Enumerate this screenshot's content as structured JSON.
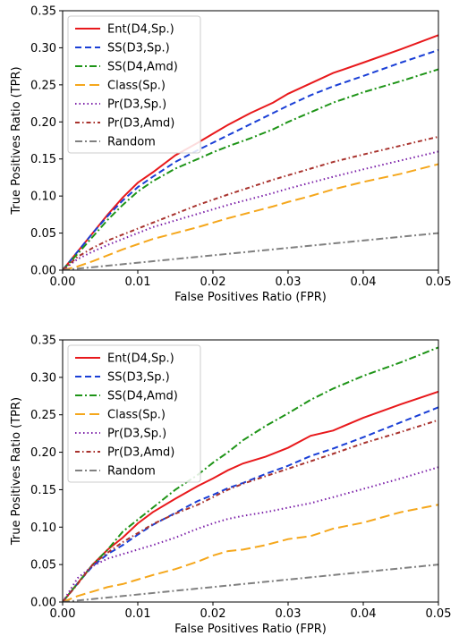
{
  "chart_data": [
    {
      "type": "line",
      "xlabel": "False Positives Ratio (FPR)",
      "ylabel": "True Positives Ratio (TPR)",
      "xlim": [
        0,
        0.05
      ],
      "ylim": [
        0,
        0.35
      ],
      "xticks": [
        "0.00",
        "0.01",
        "0.02",
        "0.03",
        "0.04",
        "0.05"
      ],
      "yticks": [
        "0.00",
        "0.05",
        "0.10",
        "0.15",
        "0.20",
        "0.25",
        "0.30",
        "0.35"
      ],
      "grid": false,
      "legend_position": "upper-left",
      "series": [
        {
          "name": "Ent(D4,Sp.)",
          "color": "#e8191c",
          "dash": "solid",
          "x": [
            0,
            0.002,
            0.004,
            0.006,
            0.008,
            0.01,
            0.012,
            0.015,
            0.018,
            0.02,
            0.022,
            0.025,
            0.028,
            0.03,
            0.033,
            0.036,
            0.04,
            0.045,
            0.05
          ],
          "y": [
            0,
            0.025,
            0.05,
            0.075,
            0.098,
            0.118,
            0.132,
            0.155,
            0.172,
            0.184,
            0.196,
            0.212,
            0.226,
            0.238,
            0.252,
            0.266,
            0.28,
            0.298,
            0.317
          ]
        },
        {
          "name": "SS(D3,Sp.)",
          "color": "#1a3fd6",
          "dash": "dashed",
          "x": [
            0,
            0.002,
            0.004,
            0.006,
            0.008,
            0.01,
            0.012,
            0.015,
            0.018,
            0.02,
            0.022,
            0.025,
            0.028,
            0.03,
            0.033,
            0.036,
            0.04,
            0.045,
            0.05
          ],
          "y": [
            0,
            0.025,
            0.05,
            0.073,
            0.094,
            0.112,
            0.126,
            0.146,
            0.162,
            0.172,
            0.182,
            0.197,
            0.212,
            0.222,
            0.236,
            0.248,
            0.262,
            0.28,
            0.297
          ]
        },
        {
          "name": "SS(D4,Amd)",
          "color": "#1e9417",
          "dash": "dashdot",
          "x": [
            0,
            0.002,
            0.004,
            0.006,
            0.008,
            0.01,
            0.012,
            0.015,
            0.018,
            0.02,
            0.022,
            0.025,
            0.028,
            0.03,
            0.033,
            0.036,
            0.04,
            0.045,
            0.05
          ],
          "y": [
            0,
            0.022,
            0.045,
            0.068,
            0.088,
            0.106,
            0.12,
            0.137,
            0.15,
            0.159,
            0.167,
            0.178,
            0.19,
            0.2,
            0.213,
            0.226,
            0.24,
            0.255,
            0.271
          ]
        },
        {
          "name": "Class(Sp.)",
          "color": "#f5a71c",
          "dash": "longdash",
          "x": [
            0,
            0.002,
            0.004,
            0.006,
            0.008,
            0.01,
            0.012,
            0.015,
            0.018,
            0.02,
            0.022,
            0.025,
            0.028,
            0.03,
            0.033,
            0.036,
            0.04,
            0.045,
            0.05
          ],
          "y": [
            0,
            0.005,
            0.012,
            0.02,
            0.028,
            0.035,
            0.042,
            0.05,
            0.058,
            0.064,
            0.07,
            0.078,
            0.086,
            0.092,
            0.1,
            0.109,
            0.119,
            0.13,
            0.143
          ]
        },
        {
          "name": "Pr(D3,Sp.)",
          "color": "#7b1fa8",
          "dash": "dotted",
          "x": [
            0,
            0.002,
            0.004,
            0.006,
            0.008,
            0.01,
            0.012,
            0.015,
            0.018,
            0.02,
            0.022,
            0.025,
            0.028,
            0.03,
            0.033,
            0.036,
            0.04,
            0.045,
            0.05
          ],
          "y": [
            0,
            0.015,
            0.025,
            0.034,
            0.042,
            0.05,
            0.058,
            0.067,
            0.076,
            0.082,
            0.088,
            0.096,
            0.104,
            0.11,
            0.118,
            0.126,
            0.136,
            0.148,
            0.16
          ]
        },
        {
          "name": "Pr(D3,Amd)",
          "color": "#a8322d",
          "dash": "dashdot-fine",
          "x": [
            0,
            0.002,
            0.004,
            0.006,
            0.008,
            0.01,
            0.012,
            0.015,
            0.018,
            0.02,
            0.022,
            0.025,
            0.028,
            0.03,
            0.033,
            0.036,
            0.04,
            0.045,
            0.05
          ],
          "y": [
            0,
            0.018,
            0.03,
            0.04,
            0.048,
            0.056,
            0.064,
            0.076,
            0.088,
            0.095,
            0.102,
            0.112,
            0.122,
            0.128,
            0.137,
            0.146,
            0.156,
            0.168,
            0.18
          ]
        },
        {
          "name": "Random",
          "color": "#808080",
          "dash": "dashdot",
          "x": [
            0,
            0.05
          ],
          "y": [
            0,
            0.05
          ]
        }
      ]
    },
    {
      "type": "line",
      "xlabel": "False Positives Ratio (FPR)",
      "ylabel": "True Positives Ratio (TPR)",
      "xlim": [
        0,
        0.05
      ],
      "ylim": [
        0,
        0.35
      ],
      "xticks": [
        "0.00",
        "0.01",
        "0.02",
        "0.03",
        "0.04",
        "0.05"
      ],
      "yticks": [
        "0.00",
        "0.05",
        "0.10",
        "0.15",
        "0.20",
        "0.25",
        "0.30",
        "0.35"
      ],
      "grid": false,
      "legend_position": "upper-left",
      "series": [
        {
          "name": "Ent(D4,Sp.)",
          "color": "#e8191c",
          "dash": "solid",
          "x": [
            0,
            0.002,
            0.004,
            0.006,
            0.008,
            0.01,
            0.012,
            0.015,
            0.018,
            0.02,
            0.022,
            0.024,
            0.027,
            0.03,
            0.033,
            0.036,
            0.04,
            0.045,
            0.05
          ],
          "y": [
            0,
            0.025,
            0.05,
            0.07,
            0.086,
            0.105,
            0.12,
            0.138,
            0.155,
            0.165,
            0.176,
            0.185,
            0.194,
            0.206,
            0.222,
            0.229,
            0.246,
            0.264,
            0.281
          ]
        },
        {
          "name": "SS(D3,Sp.)",
          "color": "#1a3fd6",
          "dash": "dashed",
          "x": [
            0,
            0.002,
            0.004,
            0.006,
            0.008,
            0.01,
            0.012,
            0.015,
            0.018,
            0.02,
            0.022,
            0.024,
            0.027,
            0.03,
            0.033,
            0.036,
            0.04,
            0.045,
            0.05
          ],
          "y": [
            0,
            0.025,
            0.048,
            0.064,
            0.076,
            0.09,
            0.103,
            0.119,
            0.135,
            0.143,
            0.152,
            0.159,
            0.171,
            0.182,
            0.195,
            0.205,
            0.22,
            0.24,
            0.26
          ]
        },
        {
          "name": "SS(D4,Amd)",
          "color": "#1e9417",
          "dash": "dashdot",
          "x": [
            0,
            0.002,
            0.004,
            0.006,
            0.008,
            0.01,
            0.012,
            0.015,
            0.018,
            0.02,
            0.022,
            0.024,
            0.027,
            0.03,
            0.033,
            0.036,
            0.04,
            0.045,
            0.05
          ],
          "y": [
            0,
            0.025,
            0.05,
            0.07,
            0.094,
            0.11,
            0.126,
            0.15,
            0.17,
            0.186,
            0.2,
            0.216,
            0.235,
            0.252,
            0.27,
            0.285,
            0.302,
            0.32,
            0.34
          ]
        },
        {
          "name": "Class(Sp.)",
          "color": "#f5a71c",
          "dash": "longdash",
          "x": [
            0,
            0.002,
            0.004,
            0.006,
            0.008,
            0.01,
            0.012,
            0.015,
            0.018,
            0.02,
            0.022,
            0.024,
            0.027,
            0.03,
            0.033,
            0.036,
            0.04,
            0.045,
            0.05
          ],
          "y": [
            0,
            0.008,
            0.014,
            0.02,
            0.024,
            0.03,
            0.036,
            0.044,
            0.054,
            0.062,
            0.068,
            0.07,
            0.076,
            0.084,
            0.088,
            0.098,
            0.106,
            0.12,
            0.13
          ]
        },
        {
          "name": "Pr(D3,Sp.)",
          "color": "#7b1fa8",
          "dash": "dotted",
          "x": [
            0,
            0.002,
            0.004,
            0.006,
            0.008,
            0.01,
            0.012,
            0.015,
            0.018,
            0.02,
            0.022,
            0.024,
            0.027,
            0.03,
            0.033,
            0.036,
            0.04,
            0.045,
            0.05
          ],
          "y": [
            0,
            0.032,
            0.048,
            0.058,
            0.064,
            0.07,
            0.076,
            0.086,
            0.098,
            0.105,
            0.111,
            0.115,
            0.12,
            0.126,
            0.132,
            0.14,
            0.151,
            0.165,
            0.18
          ]
        },
        {
          "name": "Pr(D3,Amd)",
          "color": "#a8322d",
          "dash": "dashdot-fine",
          "x": [
            0,
            0.002,
            0.004,
            0.006,
            0.008,
            0.01,
            0.012,
            0.015,
            0.018,
            0.02,
            0.022,
            0.024,
            0.027,
            0.03,
            0.033,
            0.036,
            0.04,
            0.045,
            0.05
          ],
          "y": [
            0,
            0.024,
            0.05,
            0.066,
            0.08,
            0.092,
            0.104,
            0.118,
            0.13,
            0.14,
            0.15,
            0.158,
            0.168,
            0.178,
            0.188,
            0.198,
            0.212,
            0.227,
            0.243
          ]
        },
        {
          "name": "Random",
          "color": "#808080",
          "dash": "dashdot",
          "x": [
            0,
            0.05
          ],
          "y": [
            0,
            0.05
          ]
        }
      ]
    }
  ]
}
